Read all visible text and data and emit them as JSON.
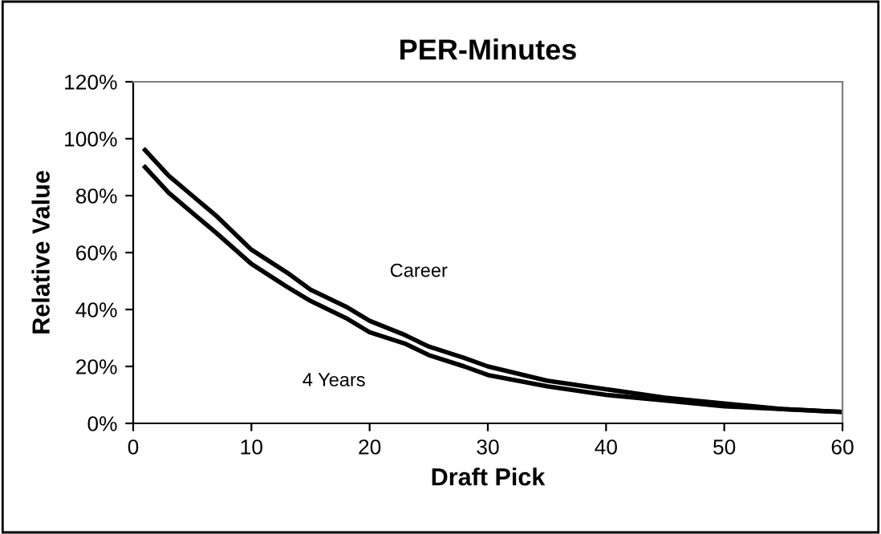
{
  "chart_data": {
    "type": "line",
    "title": "PER-Minutes",
    "xlabel": "Draft Pick",
    "ylabel": "Relative Value",
    "xlim": [
      0,
      60
    ],
    "xticks": [
      0,
      10,
      20,
      30,
      40,
      50,
      60
    ],
    "ylim": [
      0,
      120
    ],
    "yticks": [
      {
        "value": 0,
        "label": "0%"
      },
      {
        "value": 20,
        "label": "20%"
      },
      {
        "value": 40,
        "label": "40%"
      },
      {
        "value": 60,
        "label": "60%"
      },
      {
        "value": 80,
        "label": "80%"
      },
      {
        "value": 100,
        "label": "100%"
      },
      {
        "value": 120,
        "label": "120%"
      }
    ],
    "x": [
      1,
      3,
      5,
      7,
      10,
      13,
      15,
      18,
      20,
      23,
      25,
      28,
      30,
      35,
      40,
      45,
      50,
      55,
      60
    ],
    "series": [
      {
        "name": "Career",
        "color": "#000000",
        "values": [
          96,
          87,
          80,
          73,
          61,
          53,
          47,
          41,
          36,
          31,
          27,
          23,
          20,
          15,
          12,
          9,
          7,
          5,
          4
        ]
      },
      {
        "name": "4 Years",
        "color": "#000000",
        "values": [
          90,
          81,
          74,
          67,
          56,
          48,
          43,
          37,
          32,
          28,
          24,
          20,
          17,
          13,
          10,
          8,
          6,
          5,
          4
        ]
      }
    ],
    "grid": false,
    "legend": false,
    "marker": "none",
    "line_style": "solid"
  }
}
